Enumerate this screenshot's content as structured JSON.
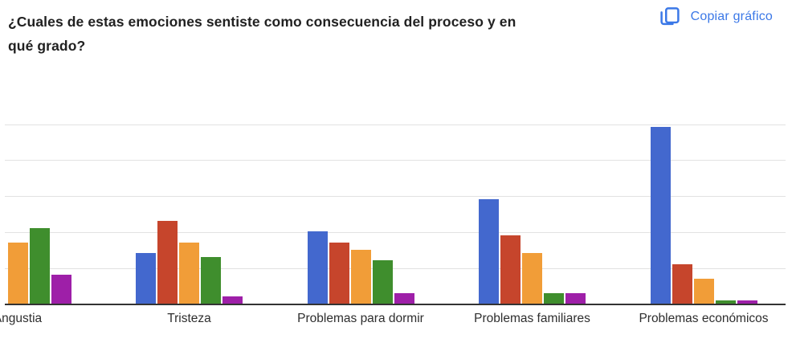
{
  "header": {
    "title_line1": "¿Cuales de estas emociones sentiste como consecuencia del proceso y en",
    "title_line2": "qué grado?",
    "copy_button": {
      "label": "Copiar gráfico",
      "icon": "copy-icon",
      "color": "#3b78e7"
    }
  },
  "chart_data": {
    "type": "bar",
    "title": "¿Cuales de estas emociones sentiste como consecuencia del proceso y en qué grado?",
    "categories": [
      "Angustia",
      "Tristeza",
      "Problemas para dormir",
      "Problemas familiares",
      "Problemas económicos"
    ],
    "series": [
      {
        "name": "blue",
        "color": "#4368ce",
        "values": [
          null,
          14,
          20,
          29,
          49
        ]
      },
      {
        "name": "red",
        "color": "#c6452c",
        "values": [
          null,
          23,
          17,
          19,
          11
        ]
      },
      {
        "name": "orange",
        "color": "#f19d38",
        "values": [
          17,
          17,
          15,
          14,
          7
        ]
      },
      {
        "name": "green",
        "color": "#3f8e2d",
        "values": [
          21,
          13,
          12,
          3,
          1
        ]
      },
      {
        "name": "purple",
        "color": "#9e1fa8",
        "values": [
          8,
          2,
          3,
          3,
          1
        ]
      }
    ],
    "ylabel": "",
    "xlabel": "",
    "ylim": [
      0,
      52
    ],
    "gridlines": [
      10,
      20,
      30,
      40,
      50
    ],
    "grid": true,
    "legend": "none",
    "notes": "Left edge of chart is cropped: y-axis tick labels are cut off and the first two bars (blue, red) of 'Angustia' are outside the visible area; gridline values estimated at 10 units per line."
  }
}
